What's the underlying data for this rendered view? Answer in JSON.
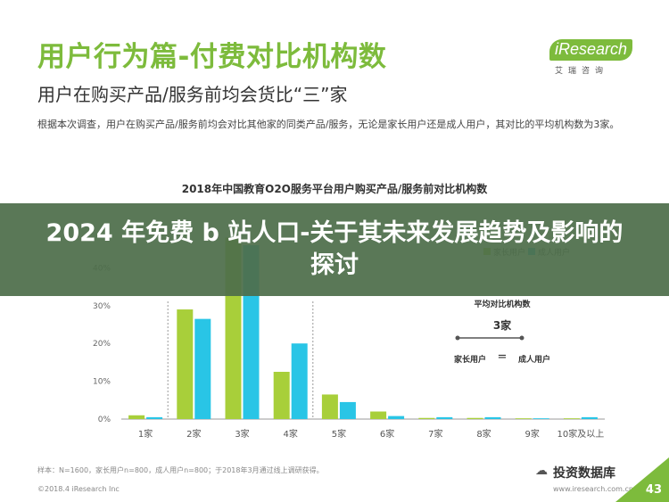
{
  "slide": {
    "title": "用户行为篇-付费对比机构数",
    "subtitle": "用户在购买产品/服务前均会货比“三”家",
    "description": "根据本次调查，用户在购买产品/服务前均会对比其他家的同类产品/服务，无论是家长用户还是成人用户，其对比的平均机构数为3家。",
    "logo_text": "iResearch",
    "logo_sub": "艾瑞咨询",
    "footnote": "样本：N=1600，家长用户n=800，成人用户n=800；于2018年3月通过线上调研获得。",
    "copyright": "©2018.4 iResearch Inc",
    "site": "www.iresearch.com.cn",
    "page_number": "43",
    "watermark": "投资数据库",
    "overlay_title": "2024 年免费 b 站人口-关于其未来发展趋势及影响的探讨"
  },
  "colors": {
    "brand": "#7dbb3c",
    "parent": "#a8cf3a",
    "adult": "#29c5e6"
  },
  "chart_data": {
    "type": "bar",
    "title": "2018年中国教育O2O服务平台用户购买产品/服务前对比机构数",
    "categories": [
      "1家",
      "2家",
      "3家",
      "4家",
      "5家",
      "6家",
      "7家",
      "8家",
      "9家",
      "10家及以上"
    ],
    "series": [
      {
        "name": "家长用户",
        "values": [
          1.0,
          29.0,
          48.0,
          12.5,
          6.5,
          2.0,
          0.3,
          0.3,
          0.2,
          0.2
        ]
      },
      {
        "name": "成人用户",
        "values": [
          0.5,
          26.5,
          46.0,
          20.0,
          4.5,
          0.8,
          0.5,
          0.5,
          0.2,
          0.5
        ]
      }
    ],
    "yticks": [
      "0%",
      "10%",
      "20%",
      "30%",
      "40%"
    ],
    "ylim": [
      0,
      50
    ],
    "legend_position": "top-right",
    "grid": false,
    "callout": {
      "title": "平均对比机构数",
      "value": "3家",
      "left_label": "家长用户",
      "equals": "=",
      "right_label": "成人用户"
    }
  }
}
